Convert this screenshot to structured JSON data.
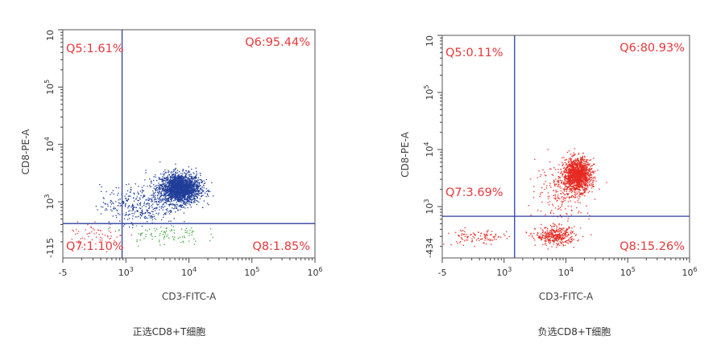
{
  "chart_data": [
    {
      "type": "scatter",
      "title": "",
      "caption": "正选CD8+T细胞",
      "xlabel": "CD3-FITC-A",
      "ylabel": "CD8-PE-A",
      "x_scale": "log",
      "y_scale": "log",
      "xlim_log10": [
        2.0,
        6.0
      ],
      "ylim_log10": [
        2.02,
        6.0
      ],
      "x_ticks": [
        {
          "base": "-5",
          "exp": ""
        },
        {
          "base": "10",
          "exp": "3"
        },
        {
          "base": "10",
          "exp": "4"
        },
        {
          "base": "10",
          "exp": "5"
        },
        {
          "base": "10",
          "exp": "6"
        }
      ],
      "x_tick_pos_log10": [
        2.0,
        3,
        4,
        5,
        6
      ],
      "y_ticks": [
        {
          "base": "-115",
          "exp": ""
        },
        {
          "base": "10",
          "exp": "3"
        },
        {
          "base": "10",
          "exp": "4"
        },
        {
          "base": "10",
          "exp": "5"
        },
        {
          "base": "10",
          "exp": ""
        }
      ],
      "y_tick_pos_log10": [
        2.02,
        3,
        4,
        5,
        6
      ],
      "gate_log10": {
        "x": 2.94,
        "y": 2.62
      },
      "gate_color": "#2e3f9e",
      "quadrants": {
        "Q5": "Q5:1.61%",
        "Q6": "Q6:95.44%",
        "Q7": "Q7:1.10%",
        "Q8": "Q8:1.85%"
      },
      "populations": [
        {
          "name": "Q6 main",
          "color": "#1f3c98",
          "center_log10": [
            3.85,
            3.24
          ],
          "sd_log10": [
            0.16,
            0.13
          ],
          "count": 2200
        },
        {
          "name": "Q6 tail",
          "color": "#1f3c98",
          "center_log10": [
            3.2,
            2.95
          ],
          "sd_log10": [
            0.3,
            0.17
          ],
          "count": 350
        },
        {
          "name": "Q8",
          "color": "#3aaa35",
          "center_log10": [
            3.6,
            2.45
          ],
          "sd_log10": [
            0.3,
            0.1
          ],
          "count": 90
        },
        {
          "name": "Q7",
          "color": "#e5383b",
          "center_log10": [
            2.55,
            2.45
          ],
          "sd_log10": [
            0.22,
            0.1
          ],
          "count": 60
        }
      ]
    },
    {
      "type": "scatter",
      "title": "",
      "caption": "负选CD8+T细胞",
      "xlabel": "CD3-FITC-A",
      "ylabel": "CD8-PE-A",
      "x_scale": "log",
      "y_scale": "log",
      "xlim_log10": [
        2.0,
        6.0
      ],
      "ylim_log10": [
        2.1,
        6.0
      ],
      "x_ticks": [
        {
          "base": "-5",
          "exp": ""
        },
        {
          "base": "10",
          "exp": "3"
        },
        {
          "base": "10",
          "exp": "4"
        },
        {
          "base": "10",
          "exp": "5"
        },
        {
          "base": "10",
          "exp": "6"
        }
      ],
      "x_tick_pos_log10": [
        2.0,
        3,
        4,
        5,
        6
      ],
      "y_ticks": [
        {
          "base": "-434",
          "exp": ""
        },
        {
          "base": "10",
          "exp": "3"
        },
        {
          "base": "10",
          "exp": "4"
        },
        {
          "base": "10",
          "exp": "5"
        },
        {
          "base": "10",
          "exp": ""
        }
      ],
      "y_tick_pos_log10": [
        2.1,
        3,
        4,
        5,
        6
      ],
      "gate_log10": {
        "x": 3.17,
        "y": 2.83
      },
      "gate_color": "#2e3f9e",
      "quadrants": {
        "Q5": "Q5:0.11%",
        "Q6": "Q6:80.93%",
        "Q7": "Q7:3.69%",
        "Q8": "Q8:15.26%"
      },
      "populations": [
        {
          "name": "Q6 main",
          "color": "#e52a22",
          "center_log10": [
            4.18,
            3.56
          ],
          "sd_log10": [
            0.11,
            0.14
          ],
          "count": 1500
        },
        {
          "name": "Q6 spread",
          "color": "#e52a22",
          "center_log10": [
            3.95,
            3.3
          ],
          "sd_log10": [
            0.22,
            0.25
          ],
          "count": 250
        },
        {
          "name": "Q8 main",
          "color": "#e52a22",
          "center_log10": [
            3.83,
            2.49
          ],
          "sd_log10": [
            0.16,
            0.08
          ],
          "count": 380
        },
        {
          "name": "Q7 left",
          "color": "#e52a22",
          "center_log10": [
            2.55,
            2.47
          ],
          "sd_log10": [
            0.25,
            0.07
          ],
          "count": 110
        }
      ]
    }
  ]
}
